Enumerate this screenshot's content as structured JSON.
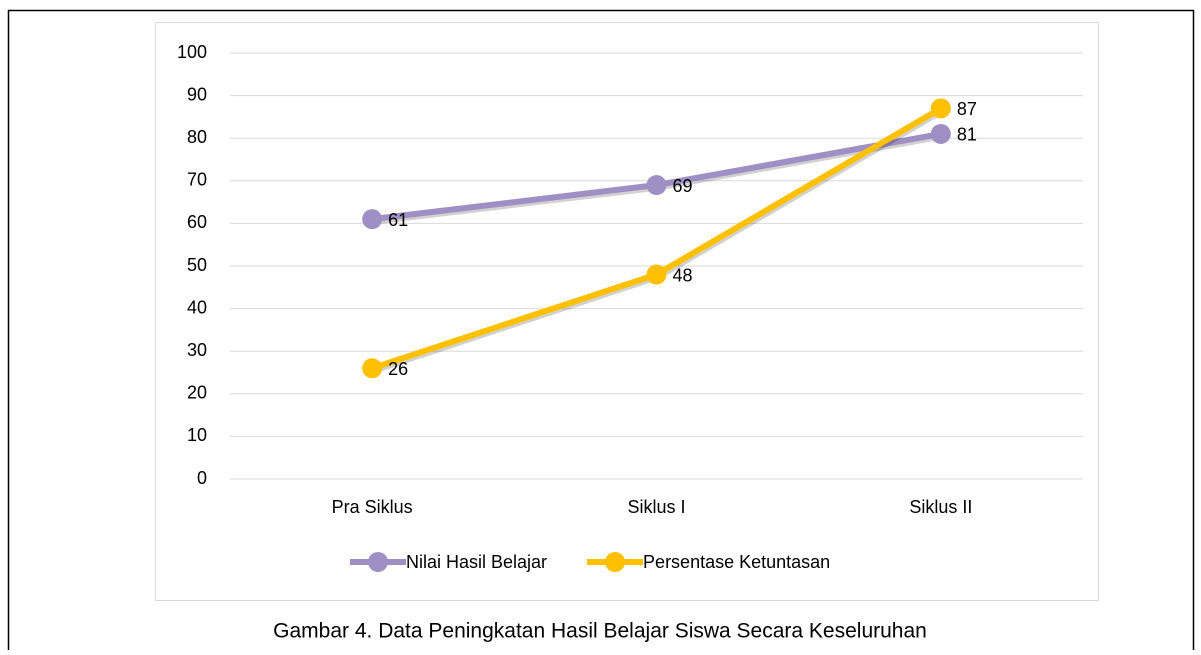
{
  "chart_data": {
    "type": "line",
    "categories": [
      "Pra Siklus",
      "Siklus I",
      "Siklus II"
    ],
    "series": [
      {
        "name": "Nilai Hasil Belajar",
        "color": "#9e8fc4",
        "values": [
          61,
          69,
          81
        ]
      },
      {
        "name": "Persentase Ketuntasan",
        "color": "#ffc000",
        "values": [
          26,
          48,
          87
        ]
      }
    ],
    "ylim": [
      0,
      100
    ],
    "yticks": [
      0,
      10,
      20,
      30,
      40,
      50,
      60,
      70,
      80,
      90,
      100
    ],
    "grid": true,
    "legend": "bottom"
  },
  "caption": "Gambar 4. Data Peningkatan Hasil Belajar Siswa Secara Keseluruhan"
}
